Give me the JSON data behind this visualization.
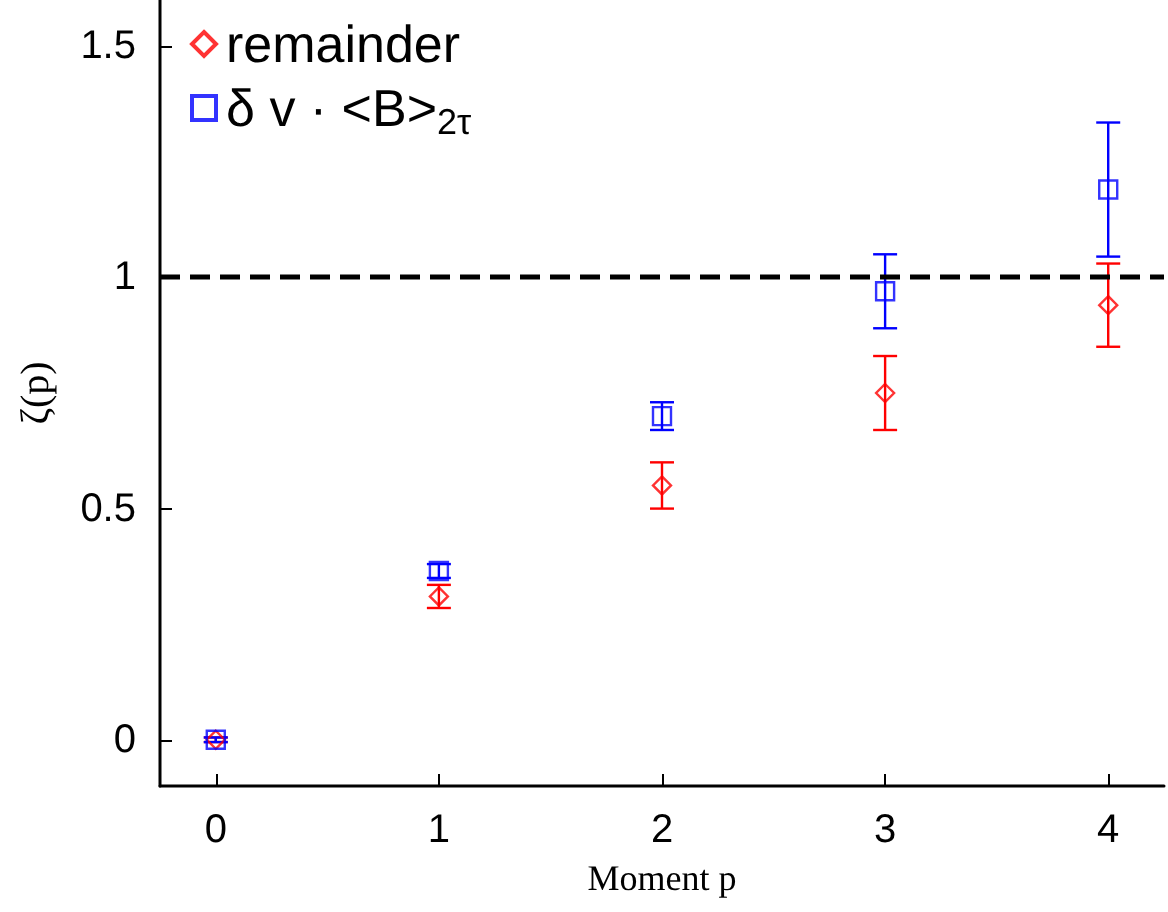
{
  "chart_data": {
    "type": "scatter",
    "xlabel": "Moment p",
    "ylabel": "ζ(p)",
    "x": [
      0,
      1,
      2,
      3,
      4
    ],
    "series": [
      {
        "name": "remainder",
        "color": "#ff0000",
        "marker": "diamond",
        "values": [
          0,
          0.31,
          0.55,
          0.75,
          0.94
        ],
        "errors": [
          0.005,
          0.025,
          0.05,
          0.08,
          0.09
        ]
      },
      {
        "name": "δ v · <B>$_{2τ}$",
        "color": "#0000ff",
        "marker": "square",
        "values": [
          0,
          0.365,
          0.7,
          0.97,
          1.19
        ],
        "errors": [
          0.005,
          0.015,
          0.03,
          0.08,
          0.145
        ]
      }
    ],
    "xlim": [
      -0.25,
      4.25
    ],
    "xticks": [
      0,
      1,
      2,
      3,
      4
    ],
    "ylim": [
      -0.1,
      1.6
    ],
    "yticks": [
      0,
      0.5,
      1,
      1.5
    ],
    "ref_lines": [
      {
        "axis": "y",
        "value": 1,
        "color": "#000000",
        "line_style": "dashed"
      }
    ],
    "grid": false,
    "legend": "top left"
  }
}
